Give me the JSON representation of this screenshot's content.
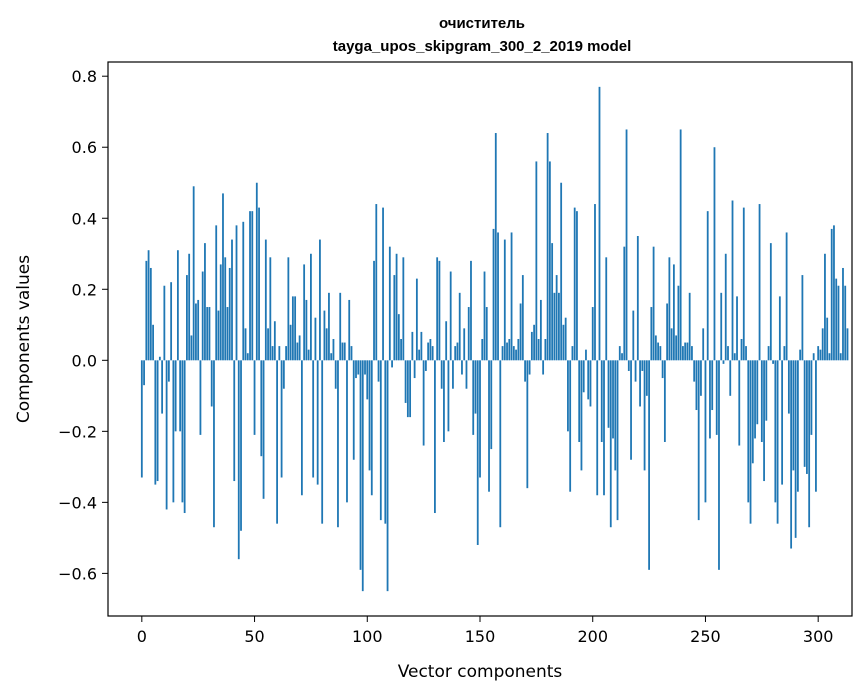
{
  "chart_data": {
    "type": "bar",
    "title": "очиститель",
    "subtitle": "tayga_upos_skipgram_300_2_2019 model",
    "xlabel": "Vector components",
    "ylabel": "Components values",
    "xlim": [
      -15,
      315
    ],
    "ylim": [
      -0.72,
      0.84
    ],
    "xticks": [
      0,
      50,
      100,
      150,
      200,
      250,
      300
    ],
    "yticks": [
      -0.6,
      -0.4,
      -0.2,
      0.0,
      0.2,
      0.4,
      0.6,
      0.8
    ],
    "ytick_labels": [
      "−0.6",
      "−0.4",
      "−0.2",
      "0.0",
      "0.2",
      "0.4",
      "0.6",
      "0.8"
    ],
    "bar_color": "#1f77b4",
    "values": [
      -0.33,
      -0.07,
      0.28,
      0.31,
      0.26,
      0.1,
      -0.35,
      -0.34,
      0.01,
      -0.15,
      0.21,
      -0.42,
      -0.06,
      0.22,
      -0.4,
      -0.2,
      0.31,
      -0.2,
      -0.4,
      -0.43,
      0.24,
      0.3,
      0.07,
      0.49,
      0.16,
      0.17,
      -0.21,
      0.25,
      0.33,
      0.15,
      0.15,
      -0.13,
      -0.47,
      0.38,
      0.14,
      0.27,
      0.47,
      0.29,
      0.15,
      0.26,
      0.34,
      -0.34,
      0.38,
      -0.56,
      -0.48,
      0.39,
      0.09,
      0.02,
      0.42,
      0.42,
      -0.21,
      0.5,
      0.43,
      -0.27,
      -0.39,
      0.34,
      0.09,
      0.29,
      0.04,
      0.11,
      -0.46,
      0.04,
      -0.33,
      -0.08,
      0.04,
      0.29,
      0.1,
      0.18,
      0.18,
      0.05,
      0.07,
      -0.38,
      0.27,
      0.17,
      0.03,
      0.3,
      -0.33,
      0.12,
      -0.35,
      0.34,
      -0.46,
      0.14,
      0.09,
      0.19,
      0.02,
      0.06,
      -0.08,
      -0.47,
      0.19,
      0.05,
      0.05,
      -0.4,
      0.17,
      0.04,
      -0.28,
      -0.05,
      -0.04,
      -0.59,
      -0.65,
      -0.04,
      -0.11,
      -0.31,
      -0.38,
      0.28,
      0.44,
      -0.06,
      -0.45,
      0.43,
      -0.46,
      -0.65,
      0.32,
      -0.02,
      0.24,
      0.3,
      0.13,
      0.06,
      0.29,
      -0.12,
      -0.16,
      -0.16,
      0.08,
      -0.05,
      0.23,
      0.03,
      0.08,
      -0.24,
      -0.03,
      0.05,
      0.06,
      0.04,
      -0.43,
      0.29,
      0.28,
      -0.08,
      -0.23,
      0.11,
      -0.2,
      0.25,
      -0.08,
      0.04,
      0.05,
      0.19,
      -0.04,
      0.09,
      -0.08,
      0.15,
      0.28,
      -0.21,
      -0.15,
      -0.52,
      -0.33,
      0.06,
      0.25,
      0.15,
      -0.37,
      -0.25,
      0.37,
      0.64,
      0.36,
      -0.47,
      0.04,
      0.34,
      0.05,
      0.06,
      0.36,
      0.04,
      0.03,
      0.06,
      0.16,
      0.24,
      -0.06,
      -0.36,
      -0.04,
      0.08,
      0.1,
      0.56,
      0.06,
      0.17,
      -0.04,
      0.06,
      0.64,
      0.56,
      0.33,
      0.19,
      0.24,
      0.19,
      0.5,
      0.1,
      0.12,
      -0.2,
      -0.37,
      0.04,
      0.43,
      0.42,
      -0.23,
      -0.31,
      -0.09,
      0.03,
      -0.11,
      -0.13,
      0.15,
      0.44,
      -0.38,
      0.77,
      -0.23,
      -0.38,
      0.29,
      -0.19,
      -0.47,
      -0.22,
      -0.31,
      -0.45,
      0.04,
      0.02,
      0.32,
      0.65,
      -0.03,
      -0.28,
      0.14,
      -0.06,
      0.35,
      -0.13,
      -0.03,
      -0.31,
      -0.1,
      -0.59,
      0.15,
      0.32,
      0.07,
      0.05,
      0.04,
      -0.05,
      -0.23,
      0.16,
      0.29,
      0.09,
      0.27,
      0.07,
      0.21,
      0.65,
      0.04,
      0.05,
      0.05,
      0.19,
      0.04,
      -0.06,
      -0.14,
      -0.45,
      -0.1,
      0.09,
      -0.4,
      0.42,
      -0.22,
      -0.14,
      0.6,
      -0.21,
      -0.59,
      0.19,
      -0.01,
      0.3,
      0.04,
      -0.1,
      0.45,
      0.02,
      0.18,
      -0.24,
      0.06,
      0.43,
      0.04,
      -0.4,
      -0.46,
      -0.29,
      -0.22,
      -0.18,
      0.44,
      -0.23,
      -0.34,
      -0.17,
      0.04,
      0.33,
      -0.01,
      -0.4,
      -0.46,
      0.18,
      -0.35,
      0.04,
      0.36,
      -0.15,
      -0.53,
      -0.31,
      -0.5,
      -0.37,
      0.03,
      0.24,
      -0.3,
      -0.32,
      -0.47,
      -0.21,
      0.02,
      -0.37,
      0.04,
      0.03,
      0.09,
      0.3,
      0.12,
      0.02,
      0.37,
      0.38,
      0.23,
      0.21,
      0.02,
      0.26,
      0.21,
      0.09
    ]
  }
}
